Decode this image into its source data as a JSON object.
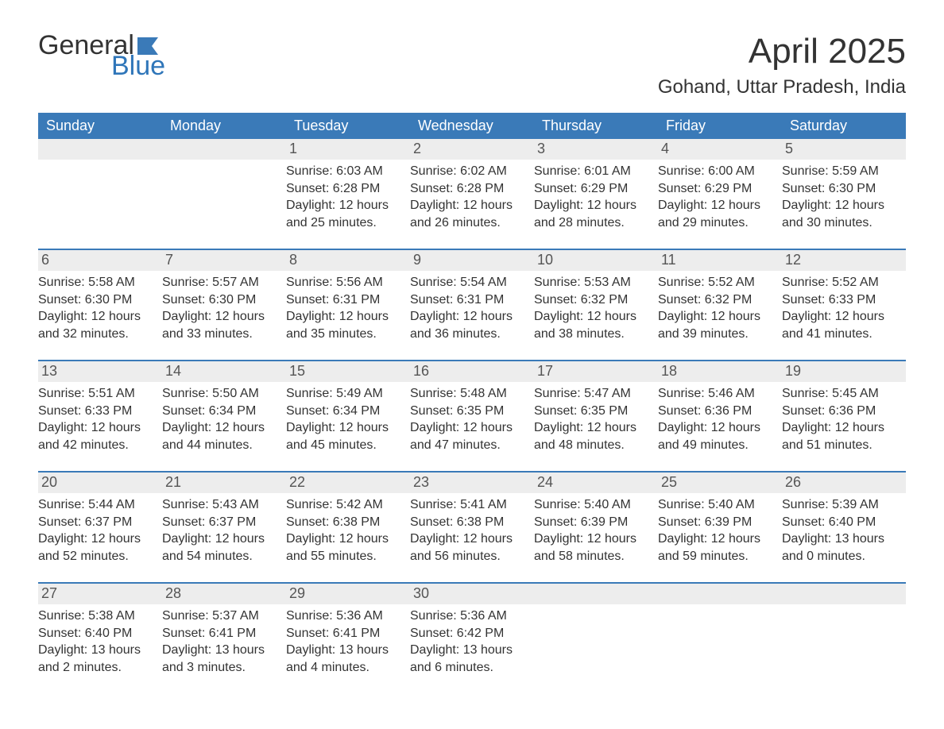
{
  "brand": {
    "word1": "General",
    "word2": "Blue",
    "text_color": "#333333",
    "accent_color": "#2f76b9",
    "flag_color": "#3a7ab8"
  },
  "title": {
    "month": "April 2025",
    "location": "Gohand, Uttar Pradesh, India",
    "month_fontsize": 44,
    "location_fontsize": 24,
    "text_color": "#333333"
  },
  "calendar": {
    "header_bg": "#3a7ab8",
    "header_text_color": "#ffffff",
    "daynum_bg": "#ededed",
    "daynum_text_color": "#555555",
    "week_border_color": "#3a7ab8",
    "body_text_color": "#333333",
    "background_color": "#ffffff",
    "cell_fontsize": 16,
    "header_fontsize": 18,
    "days_of_week": [
      "Sunday",
      "Monday",
      "Tuesday",
      "Wednesday",
      "Thursday",
      "Friday",
      "Saturday"
    ],
    "labels": {
      "sunrise": "Sunrise:",
      "sunset": "Sunset:",
      "daylight": "Daylight:"
    },
    "weeks": [
      [
        null,
        null,
        {
          "n": "1",
          "sunrise": "6:03 AM",
          "sunset": "6:28 PM",
          "daylight": "12 hours and 25 minutes."
        },
        {
          "n": "2",
          "sunrise": "6:02 AM",
          "sunset": "6:28 PM",
          "daylight": "12 hours and 26 minutes."
        },
        {
          "n": "3",
          "sunrise": "6:01 AM",
          "sunset": "6:29 PM",
          "daylight": "12 hours and 28 minutes."
        },
        {
          "n": "4",
          "sunrise": "6:00 AM",
          "sunset": "6:29 PM",
          "daylight": "12 hours and 29 minutes."
        },
        {
          "n": "5",
          "sunrise": "5:59 AM",
          "sunset": "6:30 PM",
          "daylight": "12 hours and 30 minutes."
        }
      ],
      [
        {
          "n": "6",
          "sunrise": "5:58 AM",
          "sunset": "6:30 PM",
          "daylight": "12 hours and 32 minutes."
        },
        {
          "n": "7",
          "sunrise": "5:57 AM",
          "sunset": "6:30 PM",
          "daylight": "12 hours and 33 minutes."
        },
        {
          "n": "8",
          "sunrise": "5:56 AM",
          "sunset": "6:31 PM",
          "daylight": "12 hours and 35 minutes."
        },
        {
          "n": "9",
          "sunrise": "5:54 AM",
          "sunset": "6:31 PM",
          "daylight": "12 hours and 36 minutes."
        },
        {
          "n": "10",
          "sunrise": "5:53 AM",
          "sunset": "6:32 PM",
          "daylight": "12 hours and 38 minutes."
        },
        {
          "n": "11",
          "sunrise": "5:52 AM",
          "sunset": "6:32 PM",
          "daylight": "12 hours and 39 minutes."
        },
        {
          "n": "12",
          "sunrise": "5:52 AM",
          "sunset": "6:33 PM",
          "daylight": "12 hours and 41 minutes."
        }
      ],
      [
        {
          "n": "13",
          "sunrise": "5:51 AM",
          "sunset": "6:33 PM",
          "daylight": "12 hours and 42 minutes."
        },
        {
          "n": "14",
          "sunrise": "5:50 AM",
          "sunset": "6:34 PM",
          "daylight": "12 hours and 44 minutes."
        },
        {
          "n": "15",
          "sunrise": "5:49 AM",
          "sunset": "6:34 PM",
          "daylight": "12 hours and 45 minutes."
        },
        {
          "n": "16",
          "sunrise": "5:48 AM",
          "sunset": "6:35 PM",
          "daylight": "12 hours and 47 minutes."
        },
        {
          "n": "17",
          "sunrise": "5:47 AM",
          "sunset": "6:35 PM",
          "daylight": "12 hours and 48 minutes."
        },
        {
          "n": "18",
          "sunrise": "5:46 AM",
          "sunset": "6:36 PM",
          "daylight": "12 hours and 49 minutes."
        },
        {
          "n": "19",
          "sunrise": "5:45 AM",
          "sunset": "6:36 PM",
          "daylight": "12 hours and 51 minutes."
        }
      ],
      [
        {
          "n": "20",
          "sunrise": "5:44 AM",
          "sunset": "6:37 PM",
          "daylight": "12 hours and 52 minutes."
        },
        {
          "n": "21",
          "sunrise": "5:43 AM",
          "sunset": "6:37 PM",
          "daylight": "12 hours and 54 minutes."
        },
        {
          "n": "22",
          "sunrise": "5:42 AM",
          "sunset": "6:38 PM",
          "daylight": "12 hours and 55 minutes."
        },
        {
          "n": "23",
          "sunrise": "5:41 AM",
          "sunset": "6:38 PM",
          "daylight": "12 hours and 56 minutes."
        },
        {
          "n": "24",
          "sunrise": "5:40 AM",
          "sunset": "6:39 PM",
          "daylight": "12 hours and 58 minutes."
        },
        {
          "n": "25",
          "sunrise": "5:40 AM",
          "sunset": "6:39 PM",
          "daylight": "12 hours and 59 minutes."
        },
        {
          "n": "26",
          "sunrise": "5:39 AM",
          "sunset": "6:40 PM",
          "daylight": "13 hours and 0 minutes."
        }
      ],
      [
        {
          "n": "27",
          "sunrise": "5:38 AM",
          "sunset": "6:40 PM",
          "daylight": "13 hours and 2 minutes."
        },
        {
          "n": "28",
          "sunrise": "5:37 AM",
          "sunset": "6:41 PM",
          "daylight": "13 hours and 3 minutes."
        },
        {
          "n": "29",
          "sunrise": "5:36 AM",
          "sunset": "6:41 PM",
          "daylight": "13 hours and 4 minutes."
        },
        {
          "n": "30",
          "sunrise": "5:36 AM",
          "sunset": "6:42 PM",
          "daylight": "13 hours and 6 minutes."
        },
        null,
        null,
        null
      ]
    ]
  }
}
